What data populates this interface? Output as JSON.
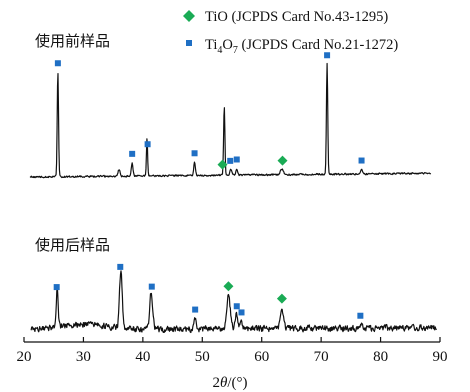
{
  "chart_data": {
    "type": "line",
    "x_axis": {
      "range": [
        20,
        90
      ],
      "ticks": [
        20,
        30,
        40,
        50,
        60,
        70,
        80,
        90
      ],
      "label_parts": [
        "2",
        "θ",
        "/(°)"
      ]
    },
    "legend": {
      "placement": "top-right",
      "entries": [
        {
          "marker": "diamond",
          "color": "#1aab55",
          "text": "TiO (JCPDS Card No.43-1295)"
        },
        {
          "marker": "square",
          "color": "#1f6fc4",
          "text_main": "Ti",
          "sub1": "4",
          "text_mid": "O",
          "sub2": "7",
          "text_tail": " (JCPDS Card No.21-1272)"
        }
      ]
    },
    "series": [
      {
        "name": "使用前样品",
        "peaks": [
          {
            "x": 25.7,
            "h": 0.95,
            "w": 0.22,
            "phase": "Ti4O7"
          },
          {
            "x": 36.0,
            "h": 0.06,
            "w": 0.35
          },
          {
            "x": 38.2,
            "h": 0.12,
            "w": 0.28,
            "phase": "Ti4O7"
          },
          {
            "x": 40.7,
            "h": 0.34,
            "w": 0.2,
            "phase": "Ti4O7"
          },
          {
            "x": 48.7,
            "h": 0.12,
            "w": 0.28,
            "phase": "Ti4O7"
          },
          {
            "x": 53.7,
            "h": 0.62,
            "w": 0.22,
            "phase": "TiO"
          },
          {
            "x": 54.8,
            "h": 0.06,
            "w": 0.3,
            "phase": "Ti4O7"
          },
          {
            "x": 55.8,
            "h": 0.06,
            "w": 0.3,
            "phase": "Ti4O7"
          },
          {
            "x": 63.4,
            "h": 0.05,
            "w": 0.5,
            "phase": "TiO"
          },
          {
            "x": 71.0,
            "h": 1.0,
            "w": 0.22,
            "phase": "Ti4O7"
          },
          {
            "x": 76.8,
            "h": 0.04,
            "w": 0.4,
            "phase": "Ti4O7"
          }
        ]
      },
      {
        "name": "使用后样品",
        "peaks": [
          {
            "x": 25.6,
            "h": 0.55,
            "w": 0.3,
            "phase": "Ti4O7"
          },
          {
            "x": 36.3,
            "h": 0.82,
            "w": 0.45,
            "phase": "Ti4O7"
          },
          {
            "x": 41.4,
            "h": 0.52,
            "w": 0.5,
            "phase": "Ti4O7"
          },
          {
            "x": 48.8,
            "h": 0.15,
            "w": 0.4,
            "phase": "Ti4O7"
          },
          {
            "x": 54.4,
            "h": 0.48,
            "w": 0.6,
            "phase": "TiO"
          },
          {
            "x": 55.7,
            "h": 0.22,
            "w": 0.4,
            "phase": "Ti4O7"
          },
          {
            "x": 56.5,
            "h": 0.12,
            "w": 0.4,
            "phase": "Ti4O7"
          },
          {
            "x": 63.4,
            "h": 0.3,
            "w": 0.5,
            "phase": "TiO"
          },
          {
            "x": 76.6,
            "h": 0.05,
            "w": 0.5,
            "phase": "Ti4O7"
          }
        ]
      }
    ],
    "markers": [
      {
        "series": 0,
        "x": 25.7,
        "phase": "Ti4O7"
      },
      {
        "series": 0,
        "x": 38.2,
        "phase": "Ti4O7"
      },
      {
        "series": 0,
        "x": 40.8,
        "phase": "Ti4O7"
      },
      {
        "series": 0,
        "x": 48.7,
        "phase": "Ti4O7"
      },
      {
        "series": 0,
        "x": 53.4,
        "phase": "TiO"
      },
      {
        "series": 0,
        "x": 54.7,
        "phase": "Ti4O7"
      },
      {
        "series": 0,
        "x": 55.8,
        "phase": "Ti4O7"
      },
      {
        "series": 0,
        "x": 63.5,
        "phase": "TiO"
      },
      {
        "series": 0,
        "x": 71.0,
        "phase": "Ti4O7"
      },
      {
        "series": 0,
        "x": 76.8,
        "phase": "Ti4O7"
      },
      {
        "series": 1,
        "x": 25.5,
        "phase": "Ti4O7"
      },
      {
        "series": 1,
        "x": 36.2,
        "phase": "Ti4O7"
      },
      {
        "series": 1,
        "x": 41.5,
        "phase": "Ti4O7"
      },
      {
        "series": 1,
        "x": 48.8,
        "phase": "Ti4O7"
      },
      {
        "series": 1,
        "x": 54.4,
        "phase": "TiO"
      },
      {
        "series": 1,
        "x": 55.8,
        "phase": "Ti4O7"
      },
      {
        "series": 1,
        "x": 56.6,
        "phase": "Ti4O7"
      },
      {
        "series": 1,
        "x": 63.4,
        "phase": "TiO"
      },
      {
        "series": 1,
        "x": 76.6,
        "phase": "Ti4O7"
      }
    ]
  }
}
